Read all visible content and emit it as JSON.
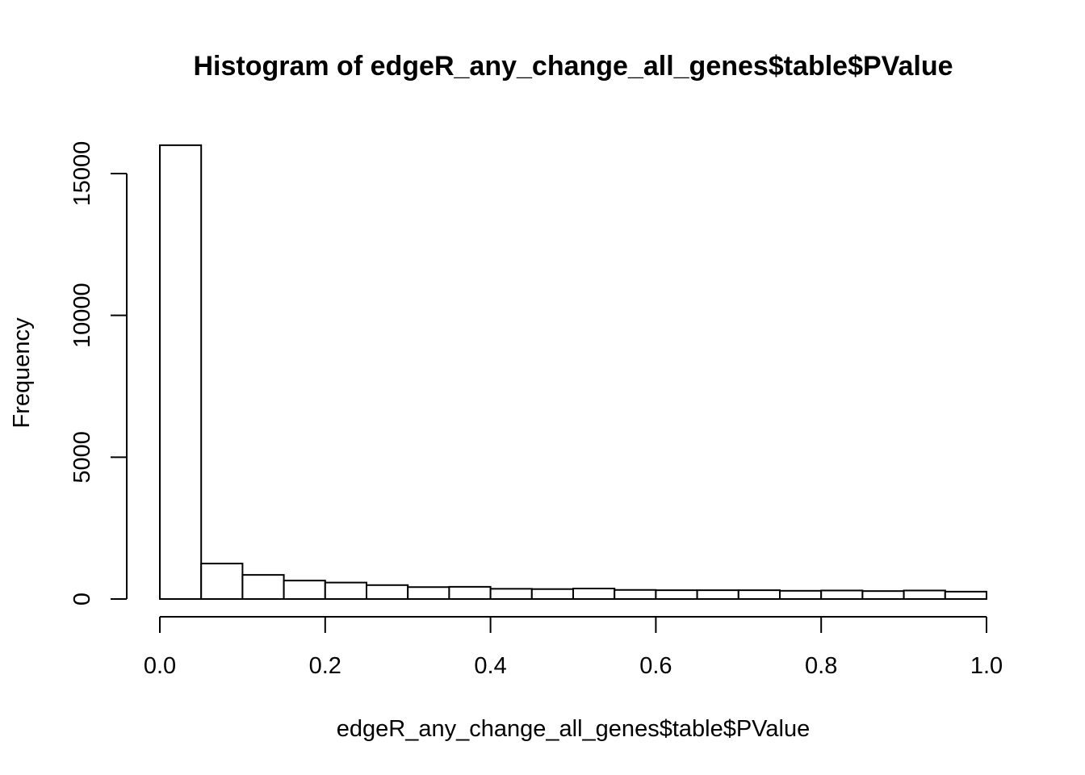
{
  "chart_data": {
    "type": "bar",
    "subtype": "histogram",
    "title": "Histogram of edgeR_any_change_all_genes$table$PValue",
    "xlabel": "edgeR_any_change_all_genes$table$PValue",
    "ylabel": "Frequency",
    "bin_width": 0.05,
    "bin_edges": [
      0.0,
      0.05,
      0.1,
      0.15,
      0.2,
      0.25,
      0.3,
      0.35,
      0.4,
      0.45,
      0.5,
      0.55,
      0.6,
      0.65,
      0.7,
      0.75,
      0.8,
      0.85,
      0.9,
      0.95,
      1.0
    ],
    "values": [
      16000,
      1250,
      850,
      650,
      580,
      490,
      420,
      430,
      360,
      350,
      370,
      320,
      310,
      310,
      310,
      290,
      300,
      280,
      300,
      260
    ],
    "xlim": [
      0,
      1
    ],
    "ylim": [
      0,
      16000
    ],
    "xticks": [
      "0.0",
      "0.2",
      "0.4",
      "0.6",
      "0.8",
      "1.0"
    ],
    "xtick_values": [
      0,
      0.2,
      0.4,
      0.6,
      0.8,
      1.0
    ],
    "yticks": [
      "0",
      "5000",
      "10000",
      "15000"
    ],
    "ytick_values": [
      0,
      5000,
      10000,
      15000
    ],
    "grid": false,
    "legend": false,
    "colors": {
      "bar_fill": "#ffffff",
      "bar_stroke": "#000000",
      "background": "#ffffff"
    }
  }
}
